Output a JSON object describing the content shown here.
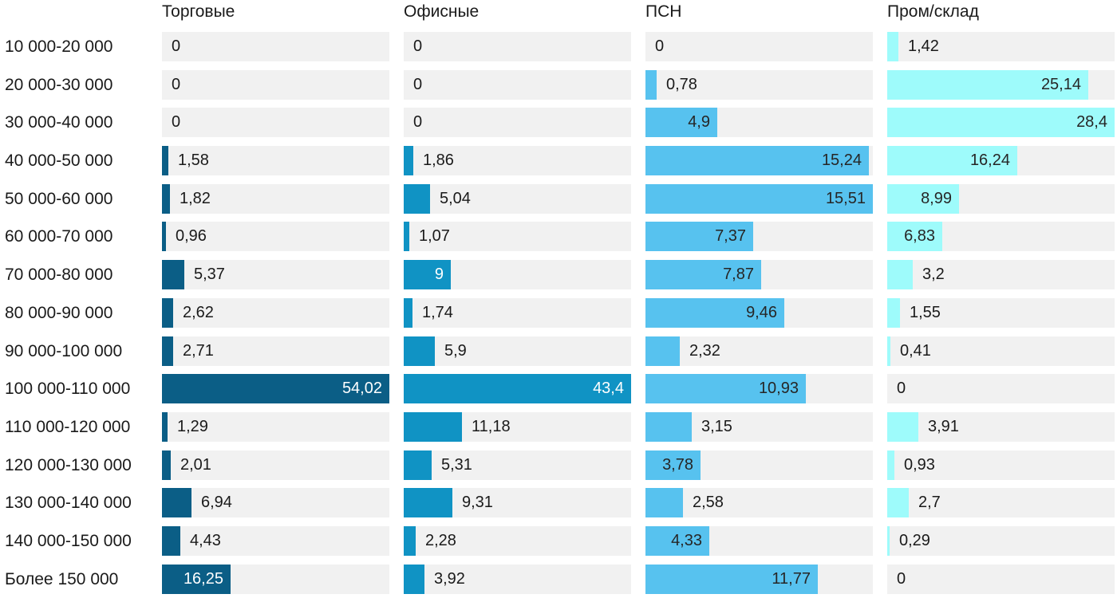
{
  "chart_data": {
    "type": "bar",
    "orientation": "horizontal",
    "legend_position": "column-headers-top",
    "grid": false,
    "track_color": "#f1f1f1",
    "text_color": "#1a1a1a",
    "categories": [
      "10 000-20 000",
      "20 000-30 000",
      "30 000-40 000",
      "40 000-50 000",
      "50 000-60 000",
      "60 000-70 000",
      "70 000-80 000",
      "80 000-90 000",
      "90 000-100 000",
      "100 000-110 000",
      "110 000-120 000",
      "120 000-130 000",
      "130 000-140 000",
      "140 000-150 000",
      "Более 150 000"
    ],
    "series": [
      {
        "name": "Торговые",
        "color": "#0b5e86",
        "inside_label_color": "#ffffff",
        "axis_max": 54.02,
        "values": [
          0,
          0,
          0,
          1.58,
          1.82,
          0.96,
          5.37,
          2.62,
          2.71,
          54.02,
          1.29,
          2.01,
          6.94,
          4.43,
          16.25
        ],
        "labels": [
          "0",
          "0",
          "0",
          "1,58",
          "1,82",
          "0,96",
          "5,37",
          "2,62",
          "2,71",
          "54,02",
          "1,29",
          "2,01",
          "6,94",
          "4,43",
          "16,25"
        ],
        "label_pos": [
          "out",
          "out",
          "out",
          "out",
          "out",
          "out",
          "out",
          "out",
          "out",
          "in",
          "out",
          "out",
          "out",
          "out",
          "in"
        ]
      },
      {
        "name": "Офисные",
        "color": "#1093c4",
        "inside_label_color": "#ffffff",
        "axis_max": 43.4,
        "values": [
          0,
          0,
          0,
          1.86,
          5.04,
          1.07,
          9,
          1.74,
          5.9,
          43.4,
          11.18,
          5.31,
          9.31,
          2.28,
          3.92
        ],
        "labels": [
          "0",
          "0",
          "0",
          "1,86",
          "5,04",
          "1,07",
          "9",
          "1,74",
          "5,9",
          "43,4",
          "11,18",
          "5,31",
          "9,31",
          "2,28",
          "3,92"
        ],
        "label_pos": [
          "out",
          "out",
          "out",
          "out",
          "out",
          "out",
          "in",
          "out",
          "out",
          "in",
          "out",
          "out",
          "out",
          "out",
          "out"
        ]
      },
      {
        "name": "ПСН",
        "color": "#57c2ef",
        "inside_label_color": "#262626",
        "axis_max": 15.51,
        "values": [
          0,
          0.78,
          4.9,
          15.24,
          15.51,
          7.37,
          7.87,
          9.46,
          2.32,
          10.93,
          3.15,
          3.78,
          2.58,
          4.33,
          11.77
        ],
        "labels": [
          "0",
          "0,78",
          "4,9",
          "15,24",
          "15,51",
          "7,37",
          "7,87",
          "9,46",
          "2,32",
          "10,93",
          "3,15",
          "3,78",
          "2,58",
          "4,33",
          "11,77"
        ],
        "label_pos": [
          "out",
          "out",
          "in",
          "in",
          "in",
          "in",
          "in",
          "in",
          "out",
          "in",
          "out",
          "in",
          "out",
          "in",
          "in"
        ]
      },
      {
        "name": "Пром/склад",
        "color": "#9efbfb",
        "inside_label_color": "#262626",
        "axis_max": 28.4,
        "values": [
          1.42,
          25.14,
          28.4,
          16.24,
          8.99,
          6.83,
          3.2,
          1.55,
          0.41,
          0,
          3.91,
          0.93,
          2.7,
          0.29,
          0
        ],
        "labels": [
          "1,42",
          "25,14",
          "28,4",
          "16,24",
          "8,99",
          "6,83",
          "3,2",
          "1,55",
          "0,41",
          "0",
          "3,91",
          "0,93",
          "2,7",
          "0,29",
          "0"
        ],
        "label_pos": [
          "out",
          "in",
          "in",
          "in",
          "in",
          "in",
          "out",
          "out",
          "out",
          "out",
          "out",
          "out",
          "out",
          "out",
          "out"
        ]
      }
    ]
  }
}
